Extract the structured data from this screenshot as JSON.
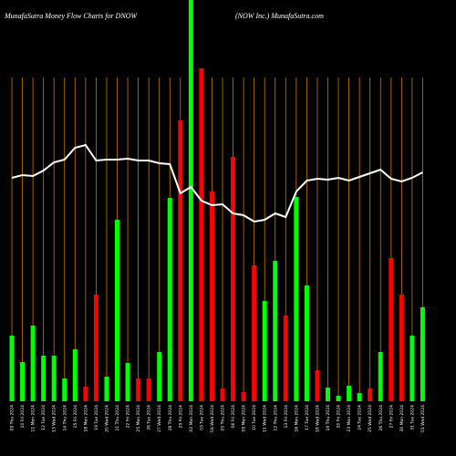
{
  "chart_data": {
    "type": "bar",
    "title": "MunafaSutra  Money Flow  Charts for DNOW",
    "subtitle": "(NOW Inc.) MunafaSutra.com",
    "categories": [
      "09 Thu 2024",
      "10 Fri 2024",
      "11 Mon 2024",
      "12 Tue 2024",
      "13 Wed 2024",
      "14 Thu 2024",
      "15 Fri 2024",
      "18 Mon 2024",
      "19 Tue 2024",
      "20 Wed 2024",
      "21 Thu 2024",
      "22 Fri 2024",
      "25 Mon 2024",
      "26 Tue 2024",
      "27 Wed 2024",
      "28 Thu 2024",
      "29 Fri 2024",
      "02 Mon 2024",
      "03 Tue 2024",
      "04 Wed 2024",
      "05 Thu 2024",
      "06 Fri 2024",
      "09 Mon 2024",
      "10 Tue 2024",
      "11 Wed 2024",
      "12 Thu 2024",
      "13 Fri 2024",
      "16 Mon 2024",
      "17 Tue 2024",
      "18 Wed 2024",
      "19 Thu 2024",
      "20 Fri 2024",
      "23 Mon 2024",
      "24 Tue 2024",
      "25 Wed 2024",
      "26 Thu 2024",
      "27 Fri 2024",
      "30 Mon 2024",
      "31 Tue 2024",
      "01 Wed 2024"
    ],
    "values": [
      72,
      43,
      83,
      50,
      50,
      25,
      57,
      16,
      117,
      27,
      199,
      42,
      25,
      25,
      54,
      223,
      308,
      450,
      365,
      230,
      14,
      268,
      10,
      149,
      110,
      154,
      94,
      224,
      127,
      34,
      15,
      6,
      17,
      9,
      14,
      54,
      157,
      117,
      72,
      103
    ],
    "bar_colors": [
      "#00ff00",
      "#00ff00",
      "#00ff00",
      "#00ff00",
      "#00ff00",
      "#00ff00",
      "#00ff00",
      "#ff0000",
      "#ff0000",
      "#00ff00",
      "#00ff00",
      "#00ff00",
      "#ff0000",
      "#ff0000",
      "#00ff00",
      "#00ff00",
      "#ff0000",
      "#00ff00",
      "#ff0000",
      "#ff0000",
      "#ff0000",
      "#ff0000",
      "#ff0000",
      "#ff0000",
      "#00ff00",
      "#00ff00",
      "#ff0000",
      "#00ff00",
      "#00ff00",
      "#ff0000",
      "#00ff00",
      "#00ff00",
      "#00ff00",
      "#00ff00",
      "#ff0000",
      "#00ff00",
      "#ff0000",
      "#ff0000",
      "#00ff00",
      "#00ff00"
    ],
    "line": {
      "color": "#ffffff",
      "values": [
        245,
        248,
        247,
        253,
        262,
        265,
        278,
        281,
        264,
        265,
        265,
        266,
        264,
        264,
        261,
        260,
        228,
        235,
        220,
        215,
        216,
        206,
        204,
        197,
        199,
        206,
        202,
        230,
        242,
        244,
        243,
        245,
        242,
        246,
        250,
        254,
        244,
        241,
        245,
        251
      ]
    },
    "grid_color": "#cc7a00",
    "ylim": [
      0,
      440
    ]
  }
}
